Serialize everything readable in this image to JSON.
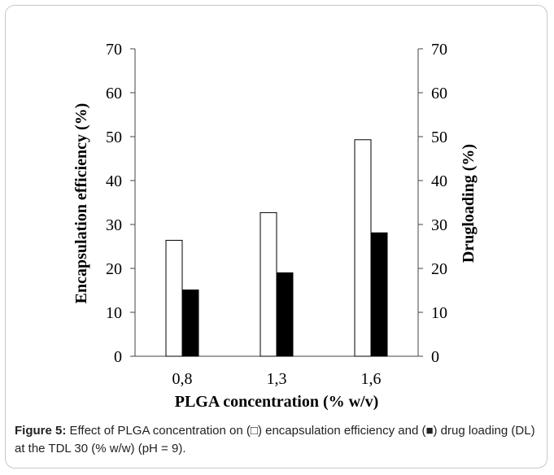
{
  "chart_data": {
    "type": "bar",
    "categories": [
      "0,8",
      "1,3",
      "1,6"
    ],
    "series": [
      {
        "name": "Encapsulation efficiency",
        "axis": "left",
        "fill": "#ffffff",
        "values": [
          26.4,
          32.7,
          49.3
        ]
      },
      {
        "name": "Drug loading",
        "axis": "right",
        "fill": "#000000",
        "values": [
          15.1,
          19.0,
          28.1
        ]
      }
    ],
    "xlabel": "PLGA concentration (% w/v)",
    "ylabel": "Encapsulation efficiency (%)",
    "y2label": "Drugloading (%)",
    "ylim": [
      0,
      70
    ],
    "y2lim": [
      0,
      70
    ],
    "yticks": [
      "0",
      "10",
      "20",
      "30",
      "40",
      "50",
      "60",
      "70"
    ],
    "y2ticks": [
      "0",
      "10",
      "20",
      "30",
      "40",
      "50",
      "60",
      "70"
    ],
    "grid": false,
    "legend": "none"
  },
  "caption": {
    "label": "Figure 5:",
    "text_1": " Effect of PLGA concentration on (",
    "open_square": "□",
    "text_2": ") encapsulation efficiency and (",
    "filled_square": "■",
    "text_3": ") drug loading (DL) at the TDL 30 (% w/w) (pH = 9)."
  }
}
